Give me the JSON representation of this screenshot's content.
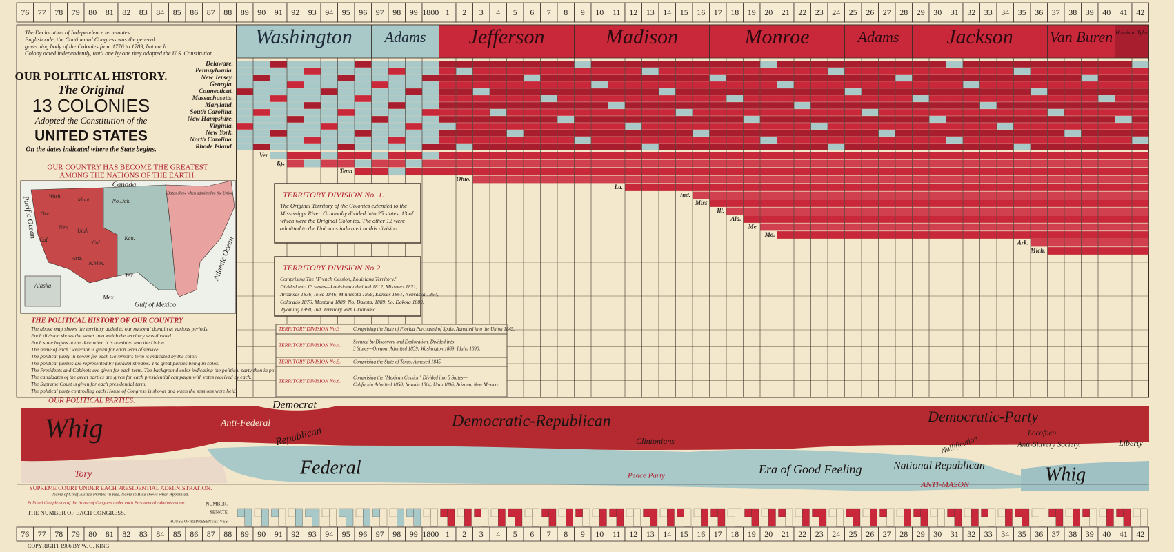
{
  "years": [
    "76",
    "77",
    "78",
    "79",
    "80",
    "81",
    "82",
    "83",
    "84",
    "85",
    "86",
    "87",
    "88",
    "89",
    "90",
    "91",
    "92",
    "93",
    "94",
    "95",
    "96",
    "97",
    "98",
    "99",
    "1800",
    "1",
    "2",
    "3",
    "4",
    "5",
    "6",
    "7",
    "8",
    "9",
    "10",
    "11",
    "12",
    "13",
    "14",
    "15",
    "16",
    "17",
    "18",
    "19",
    "20",
    "21",
    "22",
    "23",
    "24",
    "25",
    "26",
    "27",
    "28",
    "29",
    "30",
    "31",
    "32",
    "33",
    "34",
    "35",
    "36",
    "37",
    "38",
    "39",
    "40",
    "41",
    "42"
  ],
  "left": {
    "intro": [
      "The Declaration of Independence terminates",
      "English rule, the Continental Congress was the general",
      "governing body of the Colonies from 1776 to 1789, but each",
      "Colony acted independently, until one by one they adopted the U.S. Constitution."
    ],
    "title": [
      "OUR POLITICAL HISTORY.",
      "The Original",
      "13 COLONIES",
      "Adopted the Constitution of the",
      "UNITED STATES",
      "On the dates indicated where the State begins."
    ],
    "colonies": [
      "Delaware.",
      "Pennsylvania.",
      "New Jersey.",
      "Georgia.",
      "Connecticut.",
      "Massachusetts.",
      "Maryland.",
      "South Carolina.",
      "New Hampshire.",
      "Virginia.",
      "New York.",
      "North Carolina.",
      "Rhode Island."
    ],
    "greatest": [
      "OUR COUNTRY HAS BECOME THE GREATEST",
      "AMONG THE NATIONS OF THE EARTH."
    ],
    "history_title": "THE POLITICAL HISTORY OF OUR COUNTRY",
    "history_lines": [
      "The above map shows the territory added to our national domain at various periods.",
      "Each division shows the states into which the territory was divided.",
      "Each state begins at the date when it is admitted into the Union.",
      "The name of each Governor is given for each term of service.",
      "The political party in power for each Governor's term is indicated by the color.",
      "The political parties are represented by parallel streams. The great parties being in color.",
      "The Presidents and Cabinets are given for each term. The background color indicating the political party then in power.",
      "The candidates of the great parties are given for each presidential campaign with votes received by each.",
      "The Supreme Court is given for each presidential term.",
      "The political party controlling each House of Congress is shown and when the sessions were held."
    ],
    "parties_title": "OUR POLITICAL PARTIES."
  },
  "presidents": [
    "Washington",
    "Adams",
    "Jefferson",
    "Madison",
    "Monroe",
    "Adams",
    "Jackson",
    "Van Buren",
    "Harrison Tyler"
  ],
  "states": [
    "Ver",
    "Ky.",
    "Tenn",
    "Ohio.",
    "La.",
    "Ind.",
    "Miss",
    "Ill.",
    "Ala.",
    "Me.",
    "Mo.",
    "Ark.",
    "Mich."
  ],
  "map": {
    "labels": [
      "Canada",
      "Pacific Ocean",
      "Atlantic Ocean",
      "Gulf of Mexico",
      "Mex.",
      "Alaska",
      "Wash.",
      "Ore.",
      "Cal.",
      "Nev.",
      "Utah",
      "Col.",
      "Ariz.",
      "N.Mex.",
      "Tex.",
      "Mont.",
      "No.Dak.",
      "Kan.",
      "Dates show when admitted to the Union"
    ]
  },
  "territories": [
    {
      "title": "TERRITORY DIVISION No. 1.",
      "lines": [
        "The Original Territory of the Colonies extended to the",
        "Mississippi River. Gradually divided into 25 states, 13 of",
        "which were the Original Colonies. The other 12 were",
        "admitted to the Union as indicated in this division."
      ]
    },
    {
      "title": "TERRITORY DIVISION No.2.",
      "lines": [
        "Comprising The \"French Cession, Louisiana Territory.\"",
        "Divided into 13 states—Louisiana admitted 1812, Missouri 1821,",
        "Arkansas 1836, Iowa 1846, Minnesota 1858, Kansas 1861, Nebraska 1867,",
        "Colorado 1876, Montana 1889, No. Dakota, 1889, So. Dakota 1889,",
        "Wyoming 1890, Ind. Territory with Oklahoma."
      ]
    },
    {
      "title": "TERRITORY DIVISION No.3",
      "lines": [
        "Comprising the State of Florida Purchased of Spain. Admitted into the Union 1845."
      ]
    },
    {
      "title": "TERRITORY DIVISION No.4.",
      "lines": [
        "Secured by Discovery and Exploration. Divided into",
        "3 States—Oregon, Admitted 1859; Washington 1889; Idaho 1890."
      ]
    },
    {
      "title": "TERRITORY DIVISION No.5.",
      "lines": [
        "Comprising the State of Texas. Annexed 1845."
      ]
    },
    {
      "title": "TERRITORY DIVISION No.6.",
      "lines": [
        "Comprising the \"Mexican Cession\" Divided into 5 States—",
        "California Admitted 1850, Nevada 1864, Utah 1896, Arizona, New Mexico."
      ]
    }
  ],
  "parties": [
    "Whig",
    "Democrat",
    "Anti-Federal",
    "Republican",
    "Democratic-Republican",
    "Federal",
    "Tory",
    "Clintonians",
    "Peace Party",
    "Era of Good Feeling",
    "National Republican",
    "Democratic-Party",
    "Locofoco",
    "Nullification",
    "Anti-Slavery Society.",
    "Liberty",
    "ANTI-MASON",
    "Whig"
  ],
  "bottom": {
    "court_title": "SUPREME COURT UNDER EACH PRESIDENTIAL ADMINISTRATION.",
    "court_note": "Name of Chief Justice Printed in Red. Name in Blue shows when Appointed.",
    "complexion": "Political Complexion of the House of Congress under each Presidential Administration.",
    "congress_title": "THE NUMBER OF EACH CONGRESS.",
    "number": "NUMBER.",
    "senate": "SENATE",
    "house": "HOUSE OF REPRESENTATIVES"
  },
  "copyright": "COPYRIGHT 1906 BY W. C. KING"
}
